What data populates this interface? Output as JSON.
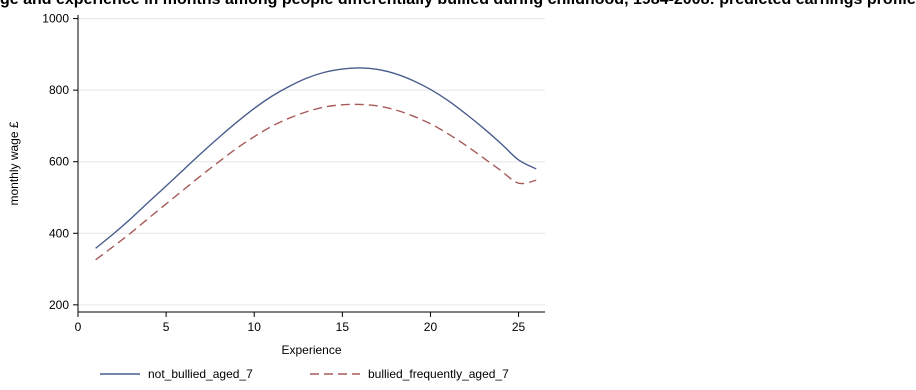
{
  "title_strip": "ge and experience in months among people differentially bullied during childhood, 1984-2008: predicted earnings profile",
  "chart_data": {
    "type": "line",
    "title": "",
    "xlabel": "Experience",
    "ylabel": "monthly wage £",
    "xlim": [
      0,
      26.5
    ],
    "ylim": [
      180,
      1010
    ],
    "xticks": [
      0,
      5,
      10,
      15,
      20,
      25
    ],
    "yticks": [
      200,
      400,
      600,
      800,
      1000
    ],
    "grid": true,
    "legend_position": "bottom",
    "series": [
      {
        "name": "not_bullied_aged_7",
        "color": "#4a5d8c",
        "dash": "solid",
        "x": [
          1,
          2,
          3,
          4,
          5,
          6,
          7,
          8,
          9,
          10,
          11,
          12,
          13,
          14,
          15,
          16,
          17,
          18,
          19,
          20,
          21,
          22,
          23,
          24,
          25,
          26
        ],
        "y": [
          358,
          398,
          441,
          487,
          532,
          578,
          624,
          668,
          710,
          749,
          783,
          811,
          834,
          850,
          859,
          862,
          858,
          846,
          827,
          802,
          771,
          734,
          694,
          651,
          605,
          580
        ]
      },
      {
        "name": "bullied_frequently_aged_7",
        "color": "#a85a5a",
        "dash": "dashed",
        "x": [
          1,
          2,
          3,
          4,
          5,
          6,
          7,
          8,
          9,
          10,
          11,
          12,
          13,
          14,
          15,
          16,
          17,
          18,
          19,
          20,
          21,
          22,
          23,
          24,
          25,
          26
        ],
        "y": [
          326,
          363,
          401,
          442,
          482,
          522,
          562,
          600,
          637,
          670,
          699,
          722,
          740,
          753,
          759,
          760,
          756,
          745,
          728,
          706,
          678,
          646,
          611,
          575,
          540,
          548
        ]
      }
    ]
  },
  "colors": {
    "axis": "#000000",
    "grid": "#e6e6e6",
    "background": "#ffffff"
  }
}
